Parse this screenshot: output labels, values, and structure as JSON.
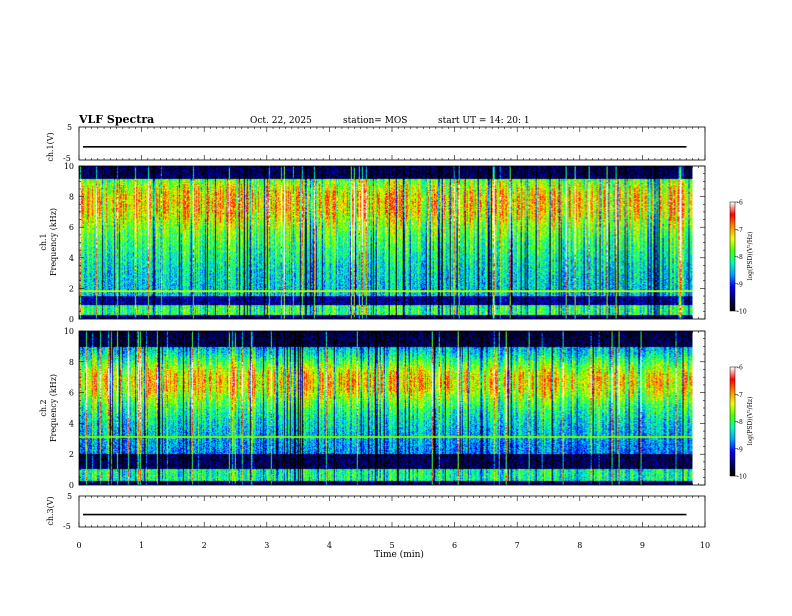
{
  "header": {
    "title": "VLF Spectra",
    "date": "Oct. 22, 2025",
    "station": "station= MOS",
    "start": "start  UT  =   14: 20: 1"
  },
  "colors": {
    "stops": [
      "#000000",
      "#00006e",
      "#0000ff",
      "#00a0ff",
      "#00ffb4",
      "#50ff00",
      "#f0ff00",
      "#ff8c00",
      "#ff0000",
      "#ffffff"
    ]
  },
  "chart_data": [
    {
      "type": "line",
      "name": "ch1-waveform",
      "ylabel": "ch.1(V)",
      "yticks": [
        "5",
        "-5"
      ],
      "ylim": [
        -5,
        5
      ],
      "level": -1,
      "xlim": [
        0,
        10
      ],
      "x_end": 9.8
    },
    {
      "type": "heatmap",
      "name": "ch1-spectrogram",
      "ylabel_top": "ch.1",
      "ylabel": "Frequency (kHz)",
      "yticks": [
        "0",
        "2",
        "4",
        "6",
        "8",
        "10"
      ],
      "ylim": [
        0,
        10
      ],
      "xlim": [
        0,
        10
      ],
      "x_end": 9.8,
      "colorbar": {
        "label": "log(PSD)(V²/Hz)",
        "ticks": [
          "-6",
          "-7",
          "-8",
          "-9",
          "-10"
        ],
        "range": [
          -10,
          -6
        ]
      }
    },
    {
      "type": "heatmap",
      "name": "ch2-spectrogram",
      "ylabel_top": "ch.2",
      "ylabel": "Frequency (kHz)",
      "yticks": [
        "0",
        "2",
        "4",
        "6",
        "8",
        "10"
      ],
      "ylim": [
        0,
        10
      ],
      "xlim": [
        0,
        10
      ],
      "x_end": 9.8,
      "colorbar": {
        "label": "log(PSD)(V²/Hz)",
        "ticks": [
          "-6",
          "-7",
          "-8",
          "-9",
          "-10"
        ],
        "range": [
          -10,
          -6
        ]
      }
    },
    {
      "type": "line",
      "name": "ch3-waveform",
      "ylabel": "ch.3(V)",
      "yticks": [
        "5",
        "-5"
      ],
      "ylim": [
        -5,
        5
      ],
      "level": -1,
      "xlim": [
        0,
        10
      ],
      "x_end": 9.8,
      "xlabel": "Time  (min)",
      "xticks": [
        "0",
        "1",
        "2",
        "3",
        "4",
        "5",
        "6",
        "7",
        "8",
        "9",
        "10"
      ]
    }
  ]
}
